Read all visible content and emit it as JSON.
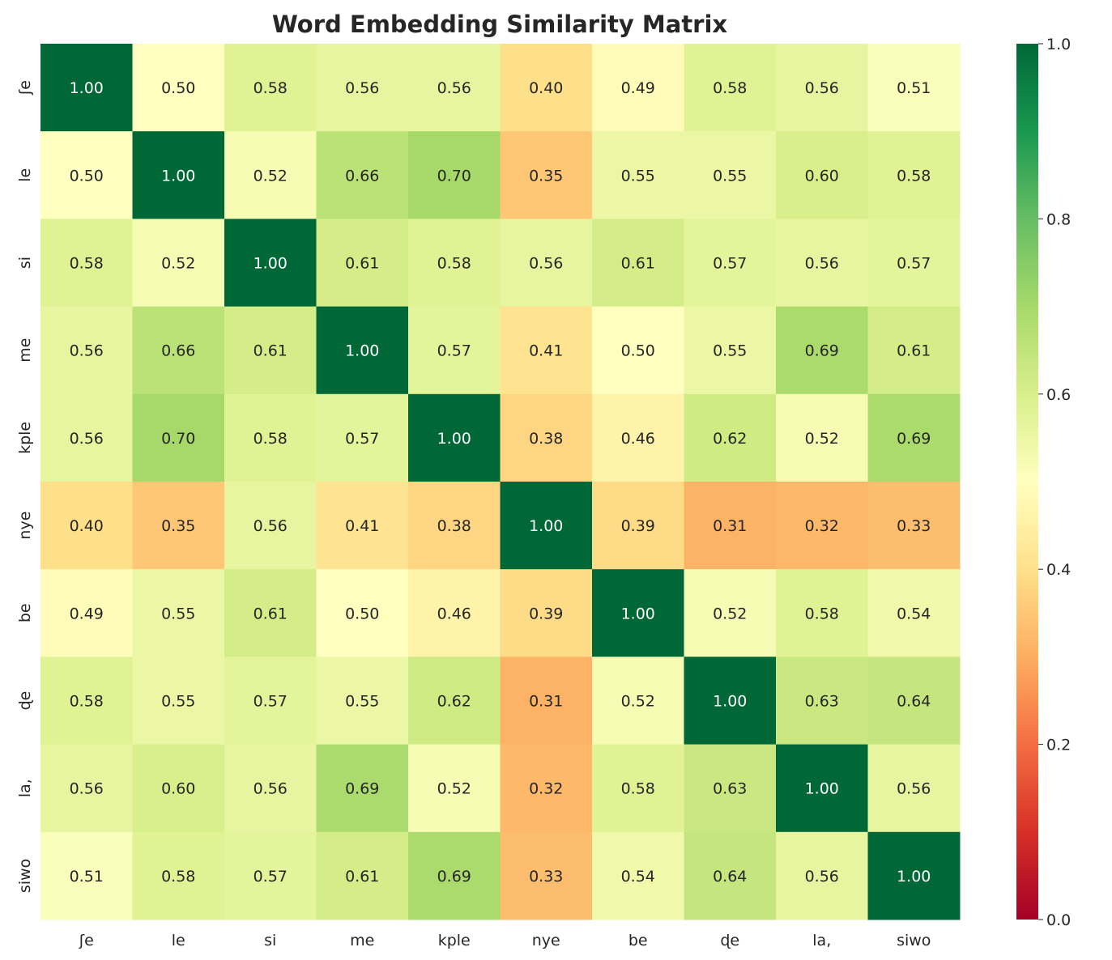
{
  "chart_data": {
    "type": "heatmap",
    "title": "Word Embedding Similarity Matrix",
    "labels": [
      "ʃe",
      "le",
      "si",
      "me",
      "kple",
      "nye",
      "be",
      "ɖe",
      "la,",
      "siwo"
    ],
    "matrix": [
      [
        1.0,
        0.5,
        0.58,
        0.56,
        0.56,
        0.4,
        0.49,
        0.58,
        0.56,
        0.51
      ],
      [
        0.5,
        1.0,
        0.52,
        0.66,
        0.7,
        0.35,
        0.55,
        0.55,
        0.6,
        0.58
      ],
      [
        0.58,
        0.52,
        1.0,
        0.61,
        0.58,
        0.56,
        0.61,
        0.57,
        0.56,
        0.57
      ],
      [
        0.56,
        0.66,
        0.61,
        1.0,
        0.57,
        0.41,
        0.5,
        0.55,
        0.69,
        0.61
      ],
      [
        0.56,
        0.7,
        0.58,
        0.57,
        1.0,
        0.38,
        0.46,
        0.62,
        0.52,
        0.69
      ],
      [
        0.4,
        0.35,
        0.56,
        0.41,
        0.38,
        1.0,
        0.39,
        0.31,
        0.32,
        0.33
      ],
      [
        0.49,
        0.55,
        0.61,
        0.5,
        0.46,
        0.39,
        1.0,
        0.52,
        0.58,
        0.54
      ],
      [
        0.58,
        0.55,
        0.57,
        0.55,
        0.62,
        0.31,
        0.52,
        1.0,
        0.63,
        0.64
      ],
      [
        0.56,
        0.6,
        0.56,
        0.69,
        0.52,
        0.32,
        0.58,
        0.63,
        1.0,
        0.56
      ],
      [
        0.51,
        0.58,
        0.57,
        0.61,
        0.69,
        0.33,
        0.54,
        0.64,
        0.56,
        1.0
      ]
    ],
    "colormap": "RdYlGn",
    "vlim": [
      0,
      1
    ],
    "colorbar_ticks": [
      "0.0",
      "0.2",
      "0.4",
      "0.6",
      "0.8",
      "1.0"
    ],
    "annotation_format": "2 decimals"
  }
}
